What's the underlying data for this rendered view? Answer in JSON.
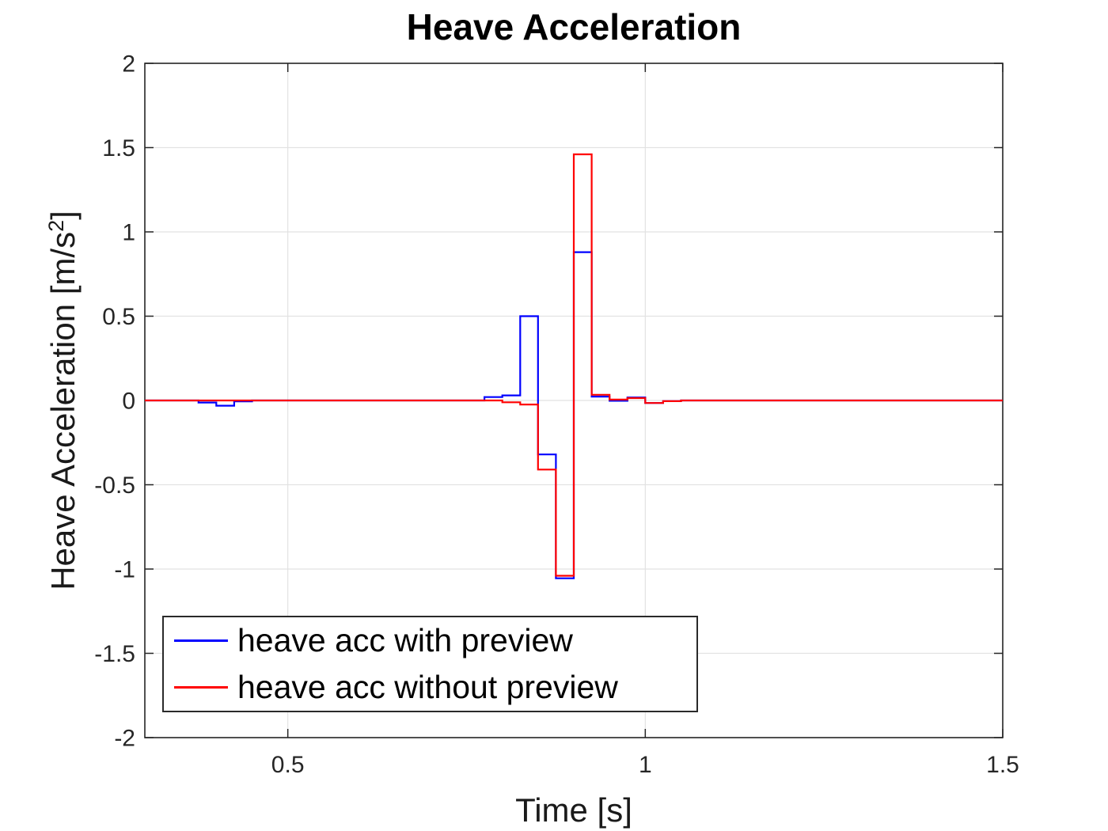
{
  "labels": {
    "ylabel_pre": "Heave Acceleration [m/s",
    "ylabel_sup": "2",
    "ylabel_post": "]"
  },
  "chart_data": {
    "type": "line",
    "line_mode": "stairs",
    "title": "Heave Acceleration",
    "xlabel": "Time [s]",
    "ylabel": "Heave Acceleration [m/s^2]",
    "xlim": [
      0.3,
      1.5
    ],
    "ylim": [
      -2,
      2
    ],
    "grid": true,
    "legend_position": "inside-southwest",
    "axis_color": "#262626",
    "grid_color": "#e2e2e2",
    "xticks": {
      "values": [
        0.5,
        1,
        1.5
      ],
      "labels": [
        "0.5",
        "1",
        "1.5"
      ]
    },
    "yticks": {
      "values": [
        -2,
        -1.5,
        -1,
        -0.5,
        0,
        0.5,
        1,
        1.5,
        2
      ],
      "labels": [
        "-2",
        "-1.5",
        "-1",
        "-0.5",
        "0",
        "0.5",
        "1",
        "1.5",
        "2"
      ]
    },
    "series": [
      {
        "name": "heave acc with preview",
        "color": "#0000ff",
        "points": [
          [
            0.3,
            0.0
          ],
          [
            0.375,
            -0.012
          ],
          [
            0.4,
            -0.031
          ],
          [
            0.425,
            -0.005
          ],
          [
            0.45,
            0.0
          ],
          [
            0.775,
            0.02
          ],
          [
            0.8,
            0.03
          ],
          [
            0.825,
            0.5
          ],
          [
            0.85,
            -0.32
          ],
          [
            0.875,
            -1.055
          ],
          [
            0.9,
            0.88
          ],
          [
            0.925,
            0.023
          ],
          [
            0.95,
            -0.002
          ],
          [
            0.975,
            0.018
          ],
          [
            1.0,
            -0.015
          ],
          [
            1.025,
            -0.004
          ],
          [
            1.05,
            0.0
          ],
          [
            1.5,
            0.0
          ]
        ]
      },
      {
        "name": "heave acc without preview",
        "color": "#ff0000",
        "points": [
          [
            0.3,
            0.0
          ],
          [
            0.8,
            -0.011
          ],
          [
            0.825,
            -0.024
          ],
          [
            0.85,
            -0.41
          ],
          [
            0.875,
            -1.04
          ],
          [
            0.9,
            1.46
          ],
          [
            0.925,
            0.034
          ],
          [
            0.95,
            0.005
          ],
          [
            0.975,
            0.014
          ],
          [
            1.0,
            -0.015
          ],
          [
            1.025,
            -0.004
          ],
          [
            1.05,
            0.0
          ],
          [
            1.5,
            0.0
          ]
        ]
      }
    ]
  }
}
